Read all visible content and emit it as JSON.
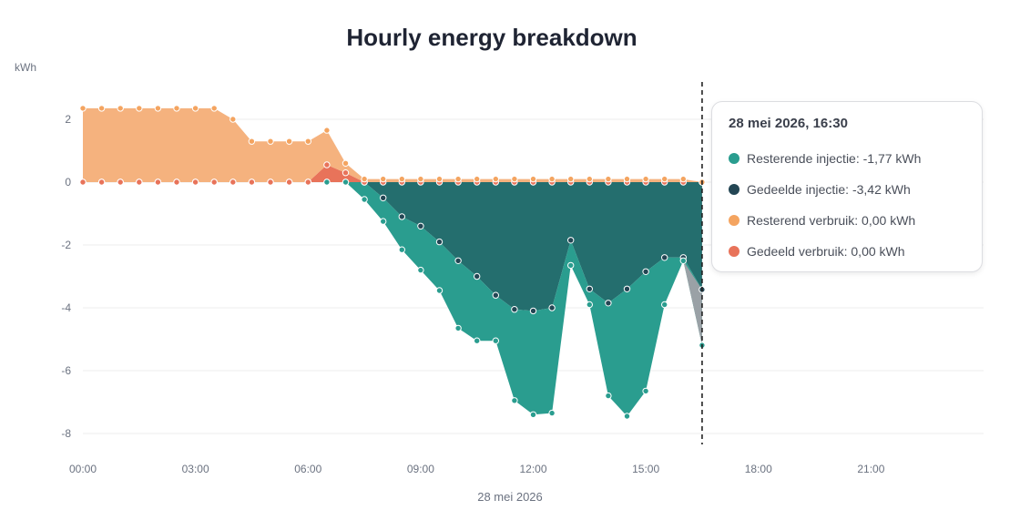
{
  "chart_data": {
    "type": "area",
    "title": "Hourly energy breakdown",
    "ylabel": "kWh",
    "xlabel": "28 mei 2026",
    "ylim": [
      -8.5,
      3.3
    ],
    "xlim": [
      0,
      24
    ],
    "y_ticks": [
      2,
      0,
      -2,
      -4,
      -6,
      -8
    ],
    "x_ticks": [
      "00:00",
      "03:00",
      "06:00",
      "09:00",
      "12:00",
      "15:00",
      "18:00",
      "21:00"
    ],
    "grid": true,
    "current_time": 16.5,
    "x": [
      0,
      0.5,
      1,
      1.5,
      2,
      2.5,
      3,
      3.5,
      4,
      4.5,
      5,
      5.5,
      6,
      6.5,
      7,
      7.5,
      8,
      8.5,
      9,
      9.5,
      10,
      10.5,
      11,
      11.5,
      12,
      12.5,
      13,
      13.5,
      14,
      14.5,
      15,
      15.5,
      16,
      16.5
    ],
    "series": [
      {
        "name": "Resterend verbruik",
        "color": "#f5b27e",
        "values": [
          2.35,
          2.35,
          2.35,
          2.35,
          2.35,
          2.35,
          2.35,
          2.35,
          2.0,
          1.3,
          1.3,
          1.3,
          1.3,
          1.1,
          0.3,
          0.1,
          0.1,
          0.1,
          0.1,
          0.1,
          0.1,
          0.1,
          0.1,
          0.1,
          0.1,
          0.1,
          0.1,
          0.1,
          0.1,
          0.1,
          0.1,
          0.1,
          0.1,
          0.0
        ]
      },
      {
        "name": "Gedeeld verbruik",
        "color": "#e8735a",
        "values": [
          0,
          0,
          0,
          0,
          0,
          0,
          0,
          0,
          0,
          0,
          0,
          0,
          0,
          0.55,
          0.3,
          0,
          0,
          0,
          0,
          0,
          0,
          0,
          0,
          0,
          0,
          0,
          0,
          0,
          0,
          0,
          0,
          0,
          0,
          0
        ]
      },
      {
        "name": "Gedeelde injectie",
        "color": "#246e6e",
        "values": [
          0,
          0,
          0,
          0,
          0,
          0,
          0,
          0,
          0,
          0,
          0,
          0,
          0,
          0,
          0,
          0,
          -0.5,
          -1.1,
          -1.4,
          -1.9,
          -2.5,
          -3.0,
          -3.6,
          -4.05,
          -4.1,
          -4.0,
          -1.85,
          -3.4,
          -3.85,
          -3.4,
          -2.85,
          -2.4,
          -2.4,
          -3.42
        ]
      },
      {
        "name": "Resterende injectie",
        "color": "#2a9d8f",
        "values": [
          0,
          0,
          0,
          0,
          0,
          0,
          0,
          0,
          0,
          0,
          0,
          0,
          0,
          0,
          0,
          -0.55,
          -0.75,
          -1.05,
          -1.4,
          -1.55,
          -2.15,
          -2.05,
          -1.45,
          -2.9,
          -3.3,
          -3.35,
          -0.8,
          -0.5,
          -2.95,
          -4.05,
          -3.8,
          -1.5,
          -0.1,
          -1.77
        ]
      }
    ]
  },
  "tooltip": {
    "title": "28 mei 2026, 16:30",
    "rows": [
      {
        "label": "Resterende injectie: -1,77 kWh",
        "color": "#2a9d8f"
      },
      {
        "label": "Gedeelde injectie: -3,42 kWh",
        "color": "#234654"
      },
      {
        "label": "Resterend verbruik: 0,00 kWh",
        "color": "#f4a460"
      },
      {
        "label": "Gedeeld verbruik: 0,00 kWh",
        "color": "#e8735a"
      }
    ]
  }
}
